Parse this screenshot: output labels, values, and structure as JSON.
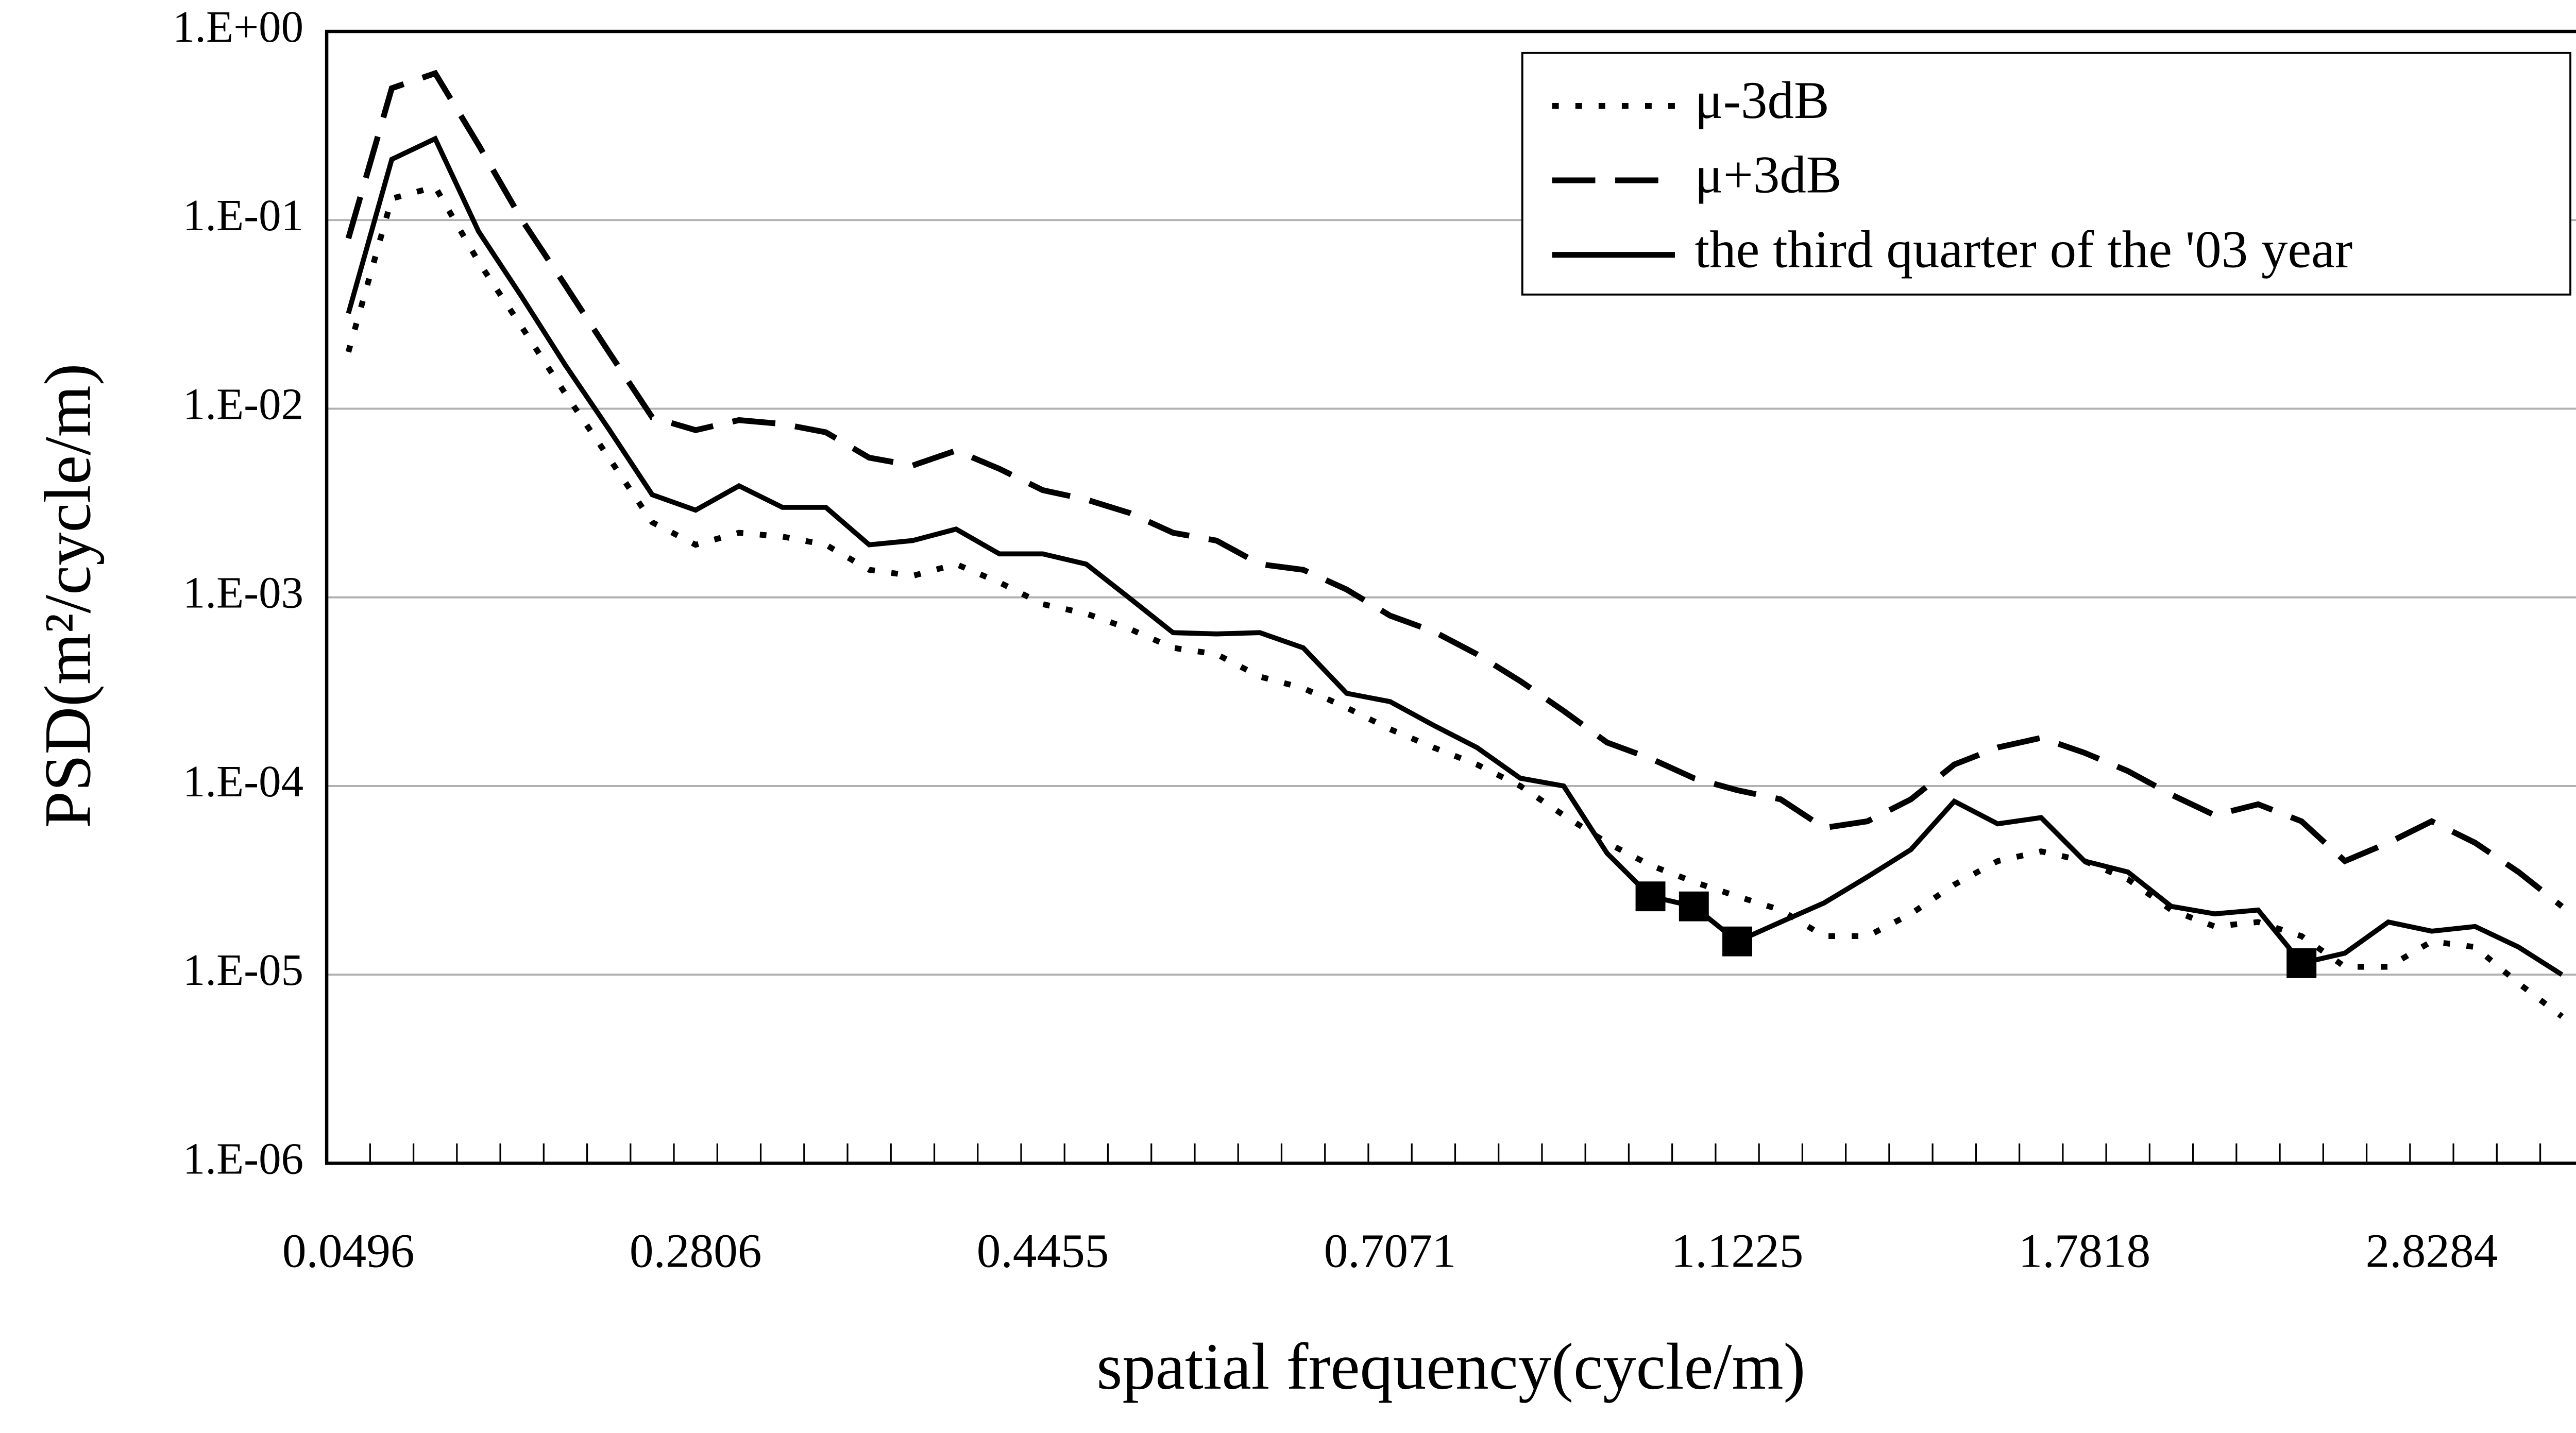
{
  "chart_data": {
    "type": "line",
    "x_label": "spatial frequency(cycle/m)",
    "y_label": "PSD(m²/cycle/m)",
    "log_y": true,
    "grid": true,
    "legend": "upper right",
    "categories": [
      "0.0496",
      null,
      null,
      null,
      null,
      null,
      null,
      null,
      "0.2806",
      null,
      null,
      null,
      null,
      null,
      null,
      null,
      "0.4455",
      null,
      null,
      null,
      null,
      null,
      null,
      null,
      "0.7071",
      null,
      null,
      null,
      null,
      null,
      null,
      null,
      "1.1225",
      null,
      null,
      null,
      null,
      null,
      null,
      null,
      "1.7818",
      null,
      null,
      null,
      null,
      null,
      null,
      null,
      "2.8284",
      null,
      null,
      null
    ],
    "ylim": [
      1e-06,
      1
    ],
    "yticks": [
      {
        "value": 1,
        "label": "1.E+00"
      },
      {
        "value": 0.1,
        "label": "1.E-01"
      },
      {
        "value": 0.01,
        "label": "1.E-02"
      },
      {
        "value": 0.001,
        "label": "1.E-03"
      },
      {
        "value": 0.0001,
        "label": "1.E-04"
      },
      {
        "value": 1e-05,
        "label": "1.E-05"
      },
      {
        "value": 1e-06,
        "label": "1.E-06"
      }
    ],
    "series": [
      {
        "name": "μ-3dB",
        "color": "#000000",
        "style": "dotted",
        "values": [
          0.02,
          0.13,
          0.15,
          0.06,
          0.027,
          0.012,
          0.0055,
          0.0025,
          0.0019,
          0.0022,
          0.0021,
          0.0019,
          0.0014,
          0.0013,
          0.0015,
          0.0012,
          0.00092,
          0.00082,
          0.00068,
          0.00054,
          0.0005,
          0.00038,
          0.00033,
          0.00026,
          0.0002,
          0.00016,
          0.00013,
          0.0001,
          7e-05,
          5e-05,
          3.8e-05,
          3.1e-05,
          2.6e-05,
          2.2e-05,
          1.6e-05,
          1.6e-05,
          2.1e-05,
          3e-05,
          4e-05,
          4.5e-05,
          4e-05,
          3.2e-05,
          2.2e-05,
          1.8e-05,
          1.9e-05,
          1.6e-05,
          1.1e-05,
          1.1e-05,
          1.5e-05,
          1.4e-05,
          9e-06,
          6e-06
        ]
      },
      {
        "name": "μ+3dB",
        "color": "#000000",
        "style": "dashed",
        "values": [
          0.08,
          0.5,
          0.6,
          0.25,
          0.1,
          0.045,
          0.02,
          0.009,
          0.0077,
          0.0087,
          0.0083,
          0.0075,
          0.0055,
          0.005,
          0.006,
          0.0048,
          0.0037,
          0.0033,
          0.0028,
          0.0022,
          0.002,
          0.0015,
          0.0014,
          0.0011,
          0.0008,
          0.00066,
          0.0005,
          0.00036,
          0.00025,
          0.00017,
          0.00014,
          0.00011,
          9.5e-05,
          8.5e-05,
          6e-05,
          6.5e-05,
          8.5e-05,
          0.00013,
          0.00016,
          0.00018,
          0.00015,
          0.00012,
          9e-05,
          7e-05,
          8e-05,
          6.5e-05,
          4e-05,
          5e-05,
          6.5e-05,
          5e-05,
          3.5e-05,
          2.3e-05
        ]
      },
      {
        "name": "the third quarter of the '03 year",
        "color": "#000000",
        "style": "solid",
        "markers": [
          30,
          31,
          32,
          45
        ],
        "values": [
          0.032,
          0.21,
          0.27,
          0.087,
          0.039,
          0.017,
          0.0078,
          0.0035,
          0.0029,
          0.0039,
          0.003,
          0.003,
          0.0019,
          0.002,
          0.0023,
          0.0017,
          0.0017,
          0.0015,
          0.00099,
          0.00065,
          0.00064,
          0.00065,
          0.00054,
          0.00031,
          0.00028,
          0.00021,
          0.00016,
          0.00011,
          0.0001,
          4.4e-05,
          2.6e-05,
          2.3e-05,
          1.5e-05,
          1.9e-05,
          2.4e-05,
          3.3e-05,
          4.6e-05,
          8.3e-05,
          6.3e-05,
          6.8e-05,
          4e-05,
          3.5e-05,
          2.3e-05,
          2.1e-05,
          2.2e-05,
          1.15e-05,
          1.3e-05,
          1.9e-05,
          1.7e-05,
          1.8e-05,
          1.4e-05,
          1e-05
        ]
      }
    ]
  }
}
